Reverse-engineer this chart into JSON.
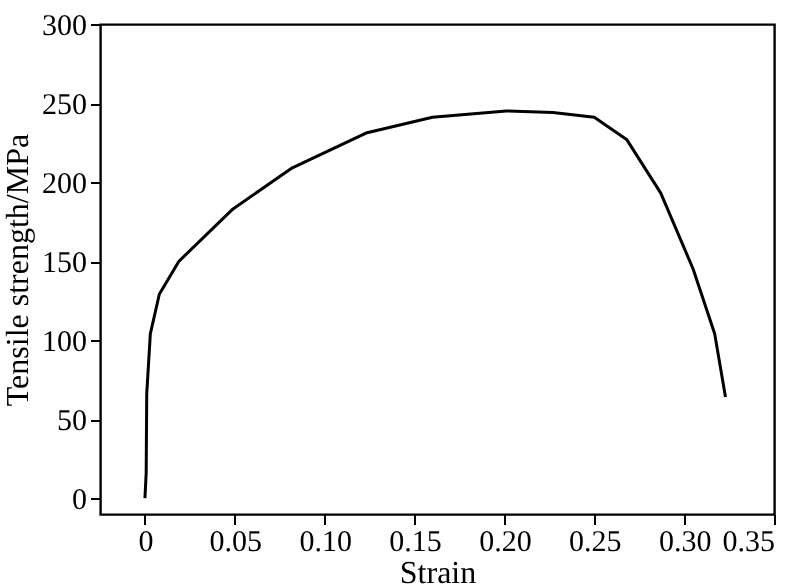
{
  "chart_data": {
    "type": "line",
    "xlabel": "Strain",
    "ylabel": "Tensile strength/MPa",
    "xlim": [
      -0.025,
      0.35
    ],
    "ylim": [
      -10,
      300
    ],
    "xticks": [
      {
        "value": 0,
        "label": "0"
      },
      {
        "value": 0.05,
        "label": "0.05"
      },
      {
        "value": 0.1,
        "label": "0.10"
      },
      {
        "value": 0.15,
        "label": "0.15"
      },
      {
        "value": 0.2,
        "label": "0.20"
      },
      {
        "value": 0.25,
        "label": "0.25"
      },
      {
        "value": 0.3,
        "label": "0.30"
      },
      {
        "value": 0.35,
        "label": "0.35"
      }
    ],
    "yticks": [
      0,
      50,
      100,
      150,
      200,
      250,
      300
    ],
    "grid": false,
    "marker": "none",
    "line_style": "solid",
    "series": [
      {
        "color": "#000000",
        "x": [
          0,
          0.0007,
          0.001,
          0.003,
          0.008,
          0.019,
          0.049,
          0.082,
          0.123,
          0.16,
          0.201,
          0.227,
          0.25,
          0.268,
          0.287,
          0.305,
          0.317,
          0.323
        ],
        "values": [
          0,
          16,
          66,
          104,
          129,
          150,
          183,
          209,
          231,
          241,
          245,
          244,
          241,
          227,
          193,
          145,
          104,
          64
        ]
      }
    ]
  }
}
